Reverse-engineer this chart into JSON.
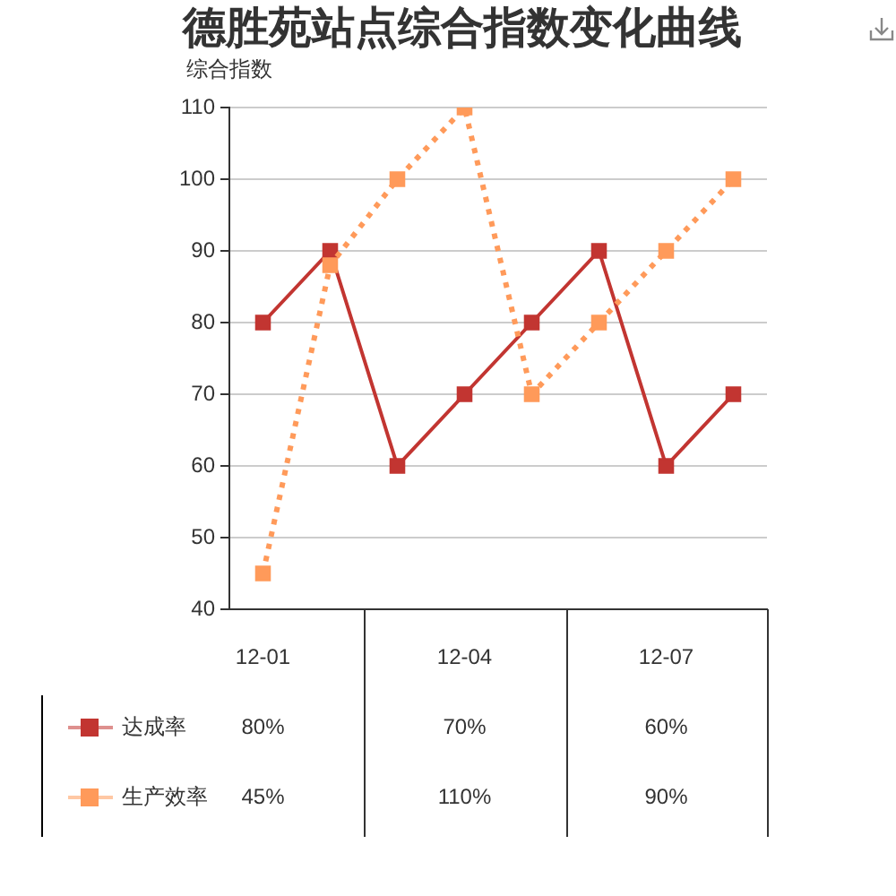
{
  "chart_data": {
    "type": "line",
    "title": "德胜苑站点综合指数变化曲线",
    "ylabel": "综合指数",
    "categories": [
      "12-01",
      null,
      null,
      "12-04",
      null,
      null,
      "12-07",
      null
    ],
    "series": [
      {
        "name": "达成率",
        "color": "#c23531",
        "line_style": "solid",
        "values": [
          80,
          90,
          60,
          70,
          80,
          90,
          60,
          70
        ],
        "value_labels": [
          "80%",
          null,
          null,
          "70%",
          null,
          null,
          "60%",
          null
        ]
      },
      {
        "name": "生产效率",
        "color": "#ff9a5a",
        "line_style": "dotted",
        "values": [
          45,
          88,
          100,
          110,
          70,
          80,
          90,
          100
        ],
        "value_labels": [
          "45%",
          null,
          null,
          "110%",
          null,
          null,
          "90%",
          null
        ]
      }
    ],
    "ylim": [
      40,
      110
    ],
    "yticks": [
      40,
      50,
      60,
      70,
      80,
      90,
      100,
      110
    ],
    "grid": "y",
    "legend": "bottom left",
    "marker": "square"
  }
}
